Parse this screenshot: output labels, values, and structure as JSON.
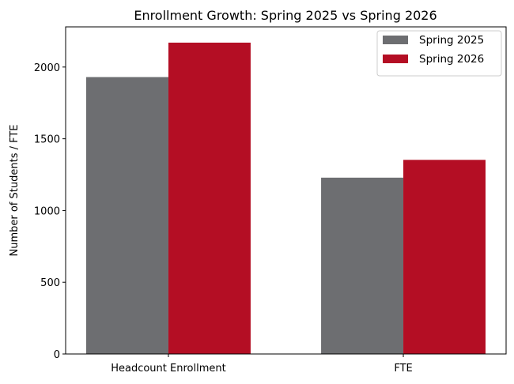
{
  "chart_data": {
    "type": "bar",
    "title": "Enrollment Growth: Spring 2025 vs Spring 2026",
    "xlabel": "",
    "ylabel": "Number of Students / FTE",
    "categories": [
      "Headcount Enrollment",
      "FTE"
    ],
    "series": [
      {
        "name": "Spring 2025",
        "values": [
          1930,
          1229
        ],
        "color": "#6d6e71"
      },
      {
        "name": "Spring 2026",
        "values": [
          2170,
          1353
        ],
        "color": "#b40e24"
      }
    ],
    "ylim": [
      0,
      2280
    ],
    "yticks": [
      0,
      500,
      1000,
      1500,
      2000
    ],
    "grid": false,
    "legend": "top-right"
  }
}
